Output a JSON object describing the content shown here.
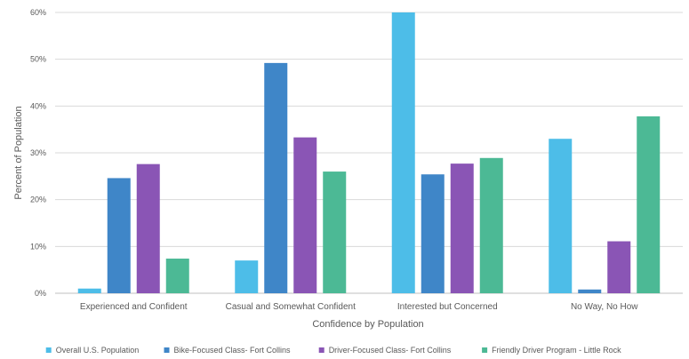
{
  "chart_data": {
    "type": "bar",
    "categories": [
      "Experienced and Confident",
      "Casual and Somewhat Confident",
      "Interested but Concerned",
      "No Way, No How"
    ],
    "series": [
      {
        "name": "Overall U.S. Population",
        "color": "#4DBDE8",
        "values": [
          1,
          7,
          60,
          33
        ]
      },
      {
        "name": "Bike-Focused Class- Fort Collins",
        "color": "#3F86C8",
        "values": [
          24.6,
          49.2,
          25.4,
          0.8
        ]
      },
      {
        "name": "Driver-Focused Class- Fort Collins",
        "color": "#8A55B5",
        "values": [
          27.6,
          33.3,
          27.7,
          11.1
        ]
      },
      {
        "name": "Friendly Driver Program - Little Rock",
        "color": "#4CB995",
        "values": [
          7.4,
          26,
          28.9,
          37.8
        ]
      }
    ],
    "ylim": [
      0,
      60
    ],
    "yticks": [
      "0%",
      "10%",
      "20%",
      "30%",
      "40%",
      "50%",
      "60%"
    ],
    "ytick_values": [
      0,
      10,
      20,
      30,
      40,
      50,
      60
    ],
    "xlabel": "Confidence by Population",
    "ylabel": "Percent of Population",
    "grid": true,
    "legend_position": "bottom"
  }
}
